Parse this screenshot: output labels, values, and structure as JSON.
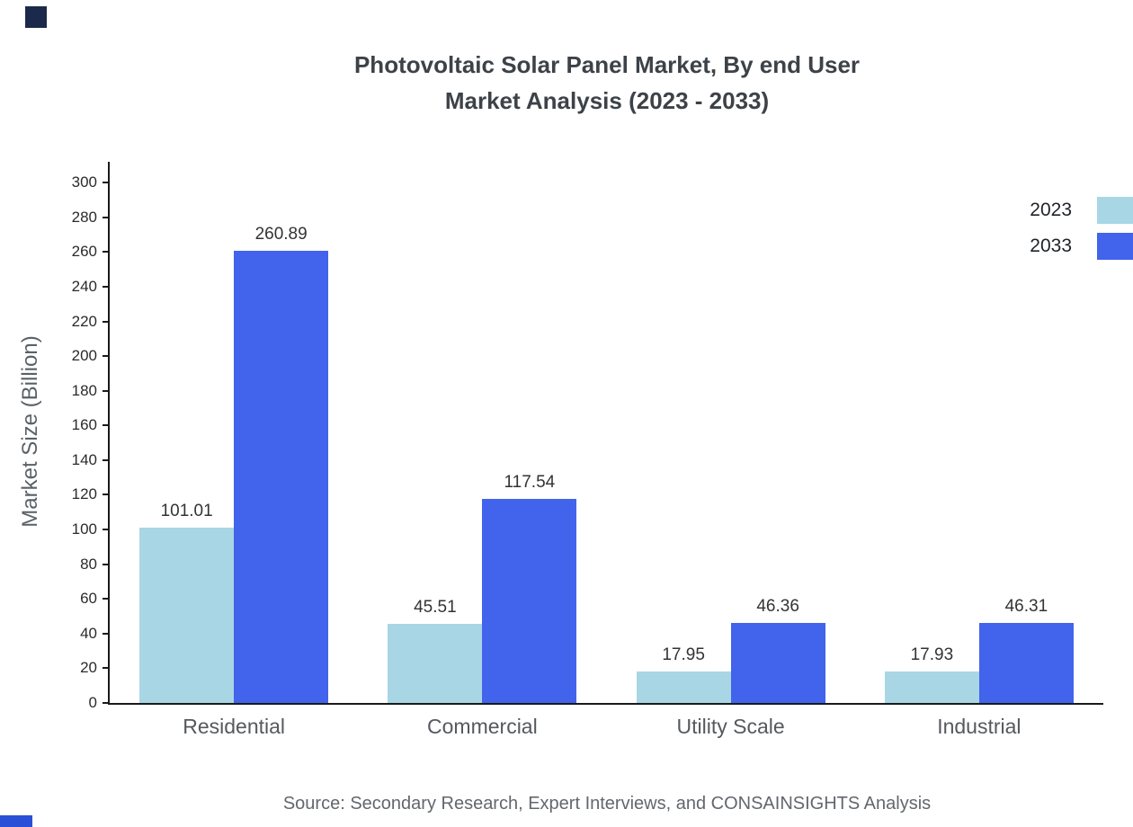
{
  "chart_data": {
    "type": "bar",
    "title_lines": [
      "Photovoltaic Solar Panel Market, By end User",
      "Market Analysis (2023 - 2033)"
    ],
    "categories": [
      "Residential",
      "Commercial",
      "Utility Scale",
      "Industrial"
    ],
    "series": [
      {
        "name": "2023",
        "color": "#a9d6e5",
        "values": [
          101.01,
          45.51,
          17.95,
          17.93
        ]
      },
      {
        "name": "2033",
        "color": "#4263eb",
        "values": [
          260.89,
          117.54,
          46.36,
          46.31
        ]
      }
    ],
    "value_labels": [
      [
        "101.01",
        "45.51",
        "17.95",
        "17.93"
      ],
      [
        "260.89",
        "117.54",
        "46.36",
        "46.31"
      ]
    ],
    "xlabel": "",
    "ylabel": "Market Size (Billion)",
    "ylim": [
      0,
      312
    ],
    "yticks": [
      0,
      20,
      40,
      60,
      80,
      100,
      120,
      140,
      160,
      180,
      200,
      220,
      240,
      260,
      280,
      300
    ],
    "grid": false,
    "legend_position": "top-right",
    "source": "Source: Secondary Research, Expert Interviews, and CONSAINSIGHTS Analysis"
  }
}
